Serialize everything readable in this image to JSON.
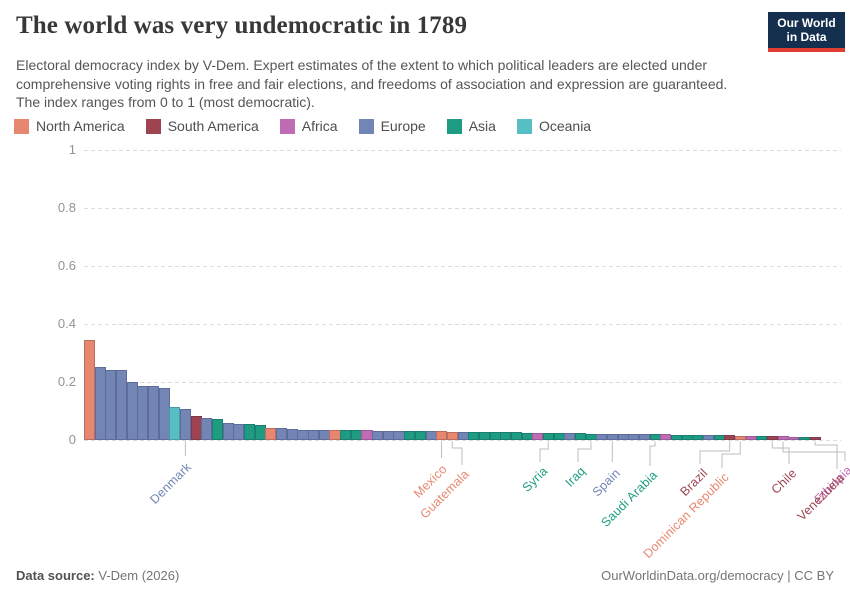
{
  "header": {
    "title": "The world was very undemocratic in 1789",
    "subtitle": "Electoral democracy index by V-Dem. Expert estimates of the extent to which political leaders are elected under comprehensive voting rights in free and fair elections, and freedoms of association and expression are guaranteed. The index ranges from 0 to 1 (most democratic).",
    "logo": {
      "line1": "Our World",
      "line2": "in Data"
    }
  },
  "colors": {
    "na": "#e8876f",
    "sa": "#9e4450",
    "af": "#c06cb4",
    "eu": "#7285b5",
    "as": "#1e9c82",
    "oc": "#57bfc4",
    "grid": "#dcdcdc",
    "axis_text": "#949494",
    "connector": "#bdbdbd",
    "logo_bg": "#14304e",
    "logo_stripe": "#e23d33"
  },
  "legend": [
    {
      "label": "North America",
      "continent": "na"
    },
    {
      "label": "South America",
      "continent": "sa"
    },
    {
      "label": "Africa",
      "continent": "af"
    },
    {
      "label": "Europe",
      "continent": "eu"
    },
    {
      "label": "Asia",
      "continent": "as"
    },
    {
      "label": "Oceania",
      "continent": "oc"
    }
  ],
  "chart_data": {
    "type": "bar",
    "title": "The world was very undemocratic in 1789",
    "xlabel": "",
    "ylabel": "Electoral democracy index",
    "ylim": [
      0,
      1
    ],
    "yticks": [
      "0",
      "0.2",
      "0.4",
      "0.6",
      "0.8",
      "1"
    ],
    "grid": true,
    "legend_position": "top",
    "sort": "descending",
    "bars": [
      {
        "value": 0.345,
        "continent": "na"
      },
      {
        "value": 0.253,
        "continent": "eu"
      },
      {
        "value": 0.242,
        "continent": "eu"
      },
      {
        "value": 0.241,
        "continent": "eu"
      },
      {
        "value": 0.199,
        "continent": "eu"
      },
      {
        "value": 0.186,
        "continent": "eu"
      },
      {
        "value": 0.185,
        "continent": "eu"
      },
      {
        "value": 0.181,
        "continent": "eu"
      },
      {
        "value": 0.114,
        "continent": "oc"
      },
      {
        "value": 0.106,
        "continent": "eu",
        "label": "Denmark"
      },
      {
        "value": 0.082,
        "continent": "sa"
      },
      {
        "value": 0.075,
        "continent": "eu"
      },
      {
        "value": 0.073,
        "continent": "as"
      },
      {
        "value": 0.058,
        "continent": "eu"
      },
      {
        "value": 0.056,
        "continent": "eu"
      },
      {
        "value": 0.054,
        "continent": "as"
      },
      {
        "value": 0.052,
        "continent": "as"
      },
      {
        "value": 0.043,
        "continent": "na"
      },
      {
        "value": 0.04,
        "continent": "eu"
      },
      {
        "value": 0.038,
        "continent": "eu"
      },
      {
        "value": 0.036,
        "continent": "eu"
      },
      {
        "value": 0.035,
        "continent": "eu"
      },
      {
        "value": 0.035,
        "continent": "eu"
      },
      {
        "value": 0.034,
        "continent": "na"
      },
      {
        "value": 0.034,
        "continent": "as"
      },
      {
        "value": 0.033,
        "continent": "as"
      },
      {
        "value": 0.033,
        "continent": "af"
      },
      {
        "value": 0.032,
        "continent": "eu"
      },
      {
        "value": 0.032,
        "continent": "eu"
      },
      {
        "value": 0.031,
        "continent": "eu"
      },
      {
        "value": 0.031,
        "continent": "as"
      },
      {
        "value": 0.03,
        "continent": "as"
      },
      {
        "value": 0.03,
        "continent": "eu"
      },
      {
        "value": 0.03,
        "continent": "na",
        "label": "Mexico"
      },
      {
        "value": 0.029,
        "continent": "na",
        "label": "Guatemala"
      },
      {
        "value": 0.028,
        "continent": "eu"
      },
      {
        "value": 0.028,
        "continent": "as"
      },
      {
        "value": 0.027,
        "continent": "as"
      },
      {
        "value": 0.027,
        "continent": "as"
      },
      {
        "value": 0.026,
        "continent": "as"
      },
      {
        "value": 0.026,
        "continent": "as"
      },
      {
        "value": 0.025,
        "continent": "as"
      },
      {
        "value": 0.025,
        "continent": "af"
      },
      {
        "value": 0.024,
        "continent": "as",
        "label": "Syria"
      },
      {
        "value": 0.024,
        "continent": "as"
      },
      {
        "value": 0.023,
        "continent": "eu"
      },
      {
        "value": 0.023,
        "continent": "as"
      },
      {
        "value": 0.022,
        "continent": "as",
        "label": "Iraq"
      },
      {
        "value": 0.022,
        "continent": "eu"
      },
      {
        "value": 0.021,
        "continent": "eu",
        "label": "Spain"
      },
      {
        "value": 0.021,
        "continent": "eu"
      },
      {
        "value": 0.02,
        "continent": "eu"
      },
      {
        "value": 0.02,
        "continent": "eu"
      },
      {
        "value": 0.019,
        "continent": "as",
        "label": "Saudi Arabia"
      },
      {
        "value": 0.019,
        "continent": "af"
      },
      {
        "value": 0.018,
        "continent": "as"
      },
      {
        "value": 0.018,
        "continent": "as"
      },
      {
        "value": 0.017,
        "continent": "as"
      },
      {
        "value": 0.017,
        "continent": "eu"
      },
      {
        "value": 0.016,
        "continent": "as"
      },
      {
        "value": 0.016,
        "continent": "sa",
        "label": "Brazil"
      },
      {
        "value": 0.015,
        "continent": "na",
        "label": "Dominican Republic"
      },
      {
        "value": 0.015,
        "continent": "af"
      },
      {
        "value": 0.014,
        "continent": "as"
      },
      {
        "value": 0.013,
        "continent": "sa",
        "label": "Chile"
      },
      {
        "value": 0.013,
        "continent": "af",
        "label": "Ethiopia"
      },
      {
        "value": 0.012,
        "continent": "af"
      },
      {
        "value": 0.011,
        "continent": "as"
      },
      {
        "value": 0.01,
        "continent": "sa",
        "label": "Venezuela"
      }
    ]
  },
  "footer": {
    "source_prefix": "Data source:",
    "source": "V-Dem (2026)",
    "credit": "OurWorldinData.org/democracy | CC BY"
  }
}
